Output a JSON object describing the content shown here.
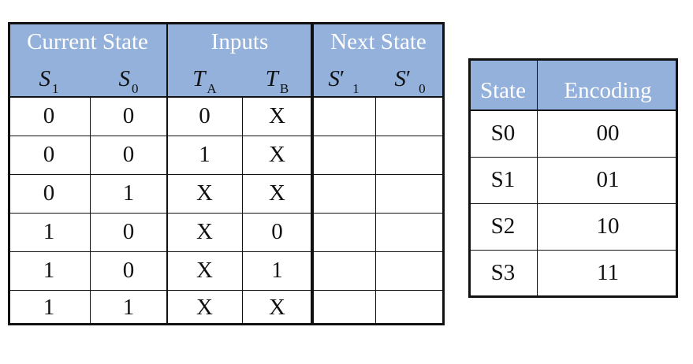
{
  "state_table": {
    "groups": [
      "Current State",
      "Inputs",
      "Next State"
    ],
    "variables": [
      {
        "letter": "S",
        "prime": "",
        "sub": "1"
      },
      {
        "letter": "S",
        "prime": "",
        "sub": "0"
      },
      {
        "letter": "T",
        "prime": "",
        "sub": "A"
      },
      {
        "letter": "T",
        "prime": "",
        "sub": "B"
      },
      {
        "letter": "S",
        "prime": "′",
        "sub": "1"
      },
      {
        "letter": "S",
        "prime": "′",
        "sub": "0"
      }
    ],
    "rows": [
      [
        "0",
        "0",
        "0",
        "X",
        "",
        ""
      ],
      [
        "0",
        "0",
        "1",
        "X",
        "",
        ""
      ],
      [
        "0",
        "1",
        "X",
        "X",
        "",
        ""
      ],
      [
        "1",
        "0",
        "X",
        "0",
        "",
        ""
      ],
      [
        "1",
        "0",
        "X",
        "1",
        "",
        ""
      ],
      [
        "1",
        "1",
        "X",
        "X",
        "",
        ""
      ]
    ]
  },
  "encoding_table": {
    "headers": [
      "State",
      "Encoding"
    ],
    "rows": [
      [
        "S0",
        "00"
      ],
      [
        "S1",
        "01"
      ],
      [
        "S2",
        "10"
      ],
      [
        "S3",
        "11"
      ]
    ]
  },
  "colors": {
    "header_fill": "#93b1db",
    "header_text": "#ffffff",
    "border": "#111111"
  }
}
